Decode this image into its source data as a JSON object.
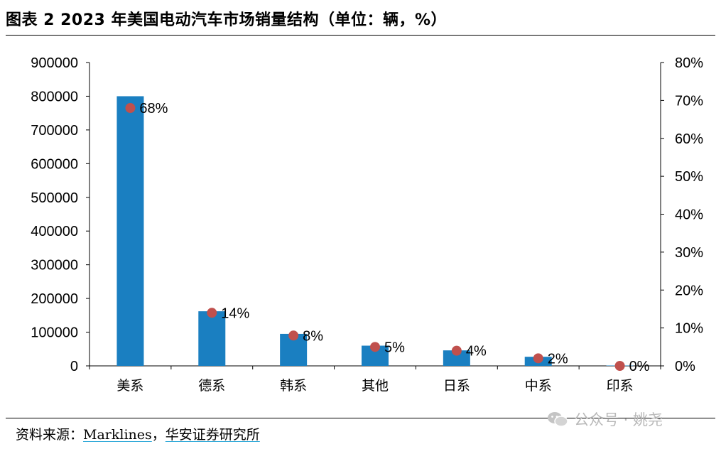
{
  "title": "图表 2 2023 年美国电动汽车市场销量结构（单位：辆，%）",
  "source": {
    "label": "资料来源：",
    "items": [
      "Marklines",
      "华安证券研究所"
    ],
    "separator": "，"
  },
  "watermark": {
    "text": "公众号 · 姚尧",
    "icon": "wechat-icon"
  },
  "colors": {
    "bar": "#1a7fc1",
    "marker": "#c0504d"
  },
  "chart_data": {
    "type": "bar",
    "categories": [
      "美系",
      "德系",
      "韩系",
      "其他",
      "日系",
      "中系",
      "印系"
    ],
    "series": [
      {
        "type": "bar",
        "axis": "left",
        "values": [
          800000,
          162000,
          95000,
          60000,
          46000,
          27000,
          1000
        ]
      },
      {
        "type": "scatter",
        "axis": "right",
        "values": [
          0.68,
          0.14,
          0.08,
          0.05,
          0.04,
          0.02,
          0.0
        ],
        "labels": [
          "68%",
          "14%",
          "8%",
          "5%",
          "4%",
          "2%",
          "0%"
        ]
      }
    ],
    "y_left": {
      "min": 0,
      "max": 900000,
      "step": 100000,
      "ticks": [
        "0",
        "100000",
        "200000",
        "300000",
        "400000",
        "500000",
        "600000",
        "700000",
        "800000",
        "900000"
      ]
    },
    "y_right": {
      "min": 0,
      "max": 0.8,
      "step": 0.1,
      "ticks": [
        "0%",
        "10%",
        "20%",
        "30%",
        "40%",
        "50%",
        "60%",
        "70%",
        "80%"
      ]
    },
    "grid": false,
    "legend": "none"
  }
}
